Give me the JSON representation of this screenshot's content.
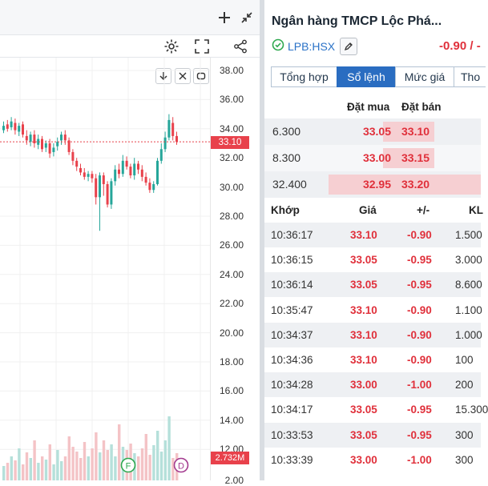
{
  "company": {
    "name": "Ngân hàng TMCP Lộc Phá...",
    "ticker": "LPB:HSX",
    "change": "-0.90 / -"
  },
  "tabs": [
    {
      "label": "Tổng hợp",
      "active": false
    },
    {
      "label": "Sổ lệnh",
      "active": true
    },
    {
      "label": "Mức giá",
      "active": false
    },
    {
      "label": "Tho",
      "active": false
    }
  ],
  "orderbook": {
    "header_bid": "Đặt mua",
    "header_ask": "Đặt bán",
    "rows": [
      {
        "vol": "6.300",
        "bid": "33.05",
        "ask": "33.10"
      },
      {
        "vol": "8.300",
        "bid": "33.00",
        "ask": "33.15"
      },
      {
        "vol": "32.400",
        "bid": "32.95",
        "ask": "33.20"
      }
    ]
  },
  "trades": {
    "headers": {
      "time": "Khớp",
      "price": "Giá",
      "change": "+/-",
      "vol": "KL"
    },
    "rows": [
      {
        "time": "10:36:17",
        "price": "33.10",
        "change": "-0.90",
        "vol": "1.500"
      },
      {
        "time": "10:36:15",
        "price": "33.05",
        "change": "-0.95",
        "vol": "3.000"
      },
      {
        "time": "10:36:14",
        "price": "33.05",
        "change": "-0.95",
        "vol": "8.600"
      },
      {
        "time": "10:35:47",
        "price": "33.10",
        "change": "-0.90",
        "vol": "1.100"
      },
      {
        "time": "10:34:37",
        "price": "33.10",
        "change": "-0.90",
        "vol": "1.000"
      },
      {
        "time": "10:34:36",
        "price": "33.10",
        "change": "-0.90",
        "vol": "100"
      },
      {
        "time": "10:34:28",
        "price": "33.00",
        "change": "-1.00",
        "vol": "200"
      },
      {
        "time": "10:34:17",
        "price": "33.05",
        "change": "-0.95",
        "vol": "15.300"
      },
      {
        "time": "10:33:53",
        "price": "33.05",
        "change": "-0.95",
        "vol": "300"
      },
      {
        "time": "10:33:39",
        "price": "33.00",
        "change": "-1.00",
        "vol": "300"
      }
    ]
  },
  "chart": {
    "price_ticks": [
      "38.00",
      "36.00",
      "34.00",
      "32.00",
      "30.00",
      "28.00",
      "26.00",
      "24.00",
      "22.00",
      "20.00",
      "18.00",
      "16.00",
      "14.00",
      "12.00"
    ],
    "last_price": "33.10",
    "volume_label": "2.732M",
    "bottom_tick": "2.00",
    "markers": [
      "F",
      "D"
    ],
    "up_color": "#26a69a",
    "down_color": "#e8414b"
  }
}
